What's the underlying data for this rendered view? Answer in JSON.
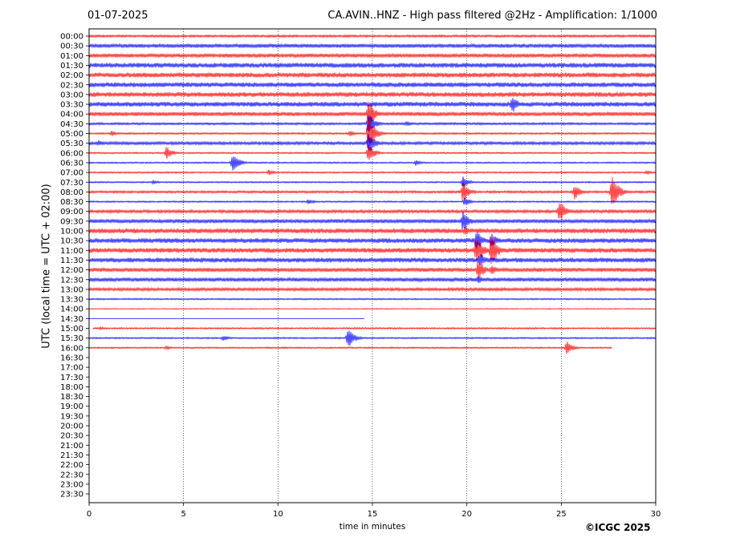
{
  "header": {
    "date": "01-07-2025",
    "title": "CA.AVIN..HNZ - High pass filtered @2Hz - Amplification: 1/1000"
  },
  "footer": {
    "copyright": "©ICGC 2025"
  },
  "chart_data": {
    "type": "line",
    "xlabel": "time in minutes",
    "ylabel": "UTC (local time = UTC + 02:00)",
    "xlim": [
      0,
      30
    ],
    "xticks": [
      "0",
      "5",
      "10",
      "15",
      "20",
      "25",
      "30"
    ],
    "grid": "vertical dotted at 5-minute intervals",
    "trace_colors": [
      "#ff0000",
      "#0000ff"
    ],
    "row_labels": [
      "00:00",
      "00:30",
      "01:00",
      "01:30",
      "02:00",
      "02:30",
      "03:00",
      "03:30",
      "04:00",
      "04:30",
      "05:00",
      "05:30",
      "06:00",
      "06:30",
      "07:00",
      "07:30",
      "08:00",
      "08:30",
      "09:00",
      "09:30",
      "10:00",
      "10:30",
      "11:00",
      "11:30",
      "12:00",
      "12:30",
      "13:00",
      "13:30",
      "14:00",
      "14:30",
      "15:00",
      "15:30",
      "16:00",
      "16:30",
      "17:00",
      "17:30",
      "18:00",
      "18:30",
      "19:00",
      "19:30",
      "20:00",
      "20:30",
      "21:00",
      "21:30",
      "22:00",
      "22:30",
      "23:00",
      "23:30"
    ],
    "traces": [
      {
        "row": "00:00",
        "color": "red",
        "amp": 1.5,
        "end": 30,
        "events": []
      },
      {
        "row": "00:30",
        "color": "blue",
        "amp": 2.5,
        "end": 30,
        "events": []
      },
      {
        "row": "01:00",
        "color": "red",
        "amp": 2.5,
        "end": 30,
        "events": []
      },
      {
        "row": "01:30",
        "color": "blue",
        "amp": 3,
        "end": 30,
        "events": []
      },
      {
        "row": "02:00",
        "color": "red",
        "amp": 3,
        "end": 30,
        "events": []
      },
      {
        "row": "02:30",
        "color": "blue",
        "amp": 3,
        "end": 30,
        "events": []
      },
      {
        "row": "03:00",
        "color": "red",
        "amp": 3,
        "end": 30,
        "events": []
      },
      {
        "row": "03:30",
        "color": "blue",
        "amp": 3,
        "end": 30,
        "events": [
          {
            "t": 12.3,
            "a": 4
          },
          {
            "t": 22.4,
            "a": 12
          }
        ]
      },
      {
        "row": "04:00",
        "color": "red",
        "amp": 2.5,
        "end": 30,
        "events": [
          {
            "t": 14.8,
            "a": 20
          }
        ]
      },
      {
        "row": "04:30",
        "color": "blue",
        "amp": 1.5,
        "end": 30,
        "events": [
          {
            "t": 14.8,
            "a": 16
          },
          {
            "t": 16.8,
            "a": 4
          }
        ]
      },
      {
        "row": "05:00",
        "color": "red",
        "amp": 1.2,
        "end": 30,
        "events": [
          {
            "t": 1.2,
            "a": 4
          },
          {
            "t": 13.8,
            "a": 4
          },
          {
            "t": 14.8,
            "a": 24
          }
        ]
      },
      {
        "row": "05:30",
        "color": "blue",
        "amp": 2,
        "end": 30,
        "events": [
          {
            "t": 0.5,
            "a": 4
          },
          {
            "t": 14.8,
            "a": 14
          },
          {
            "t": 28.5,
            "a": 3
          }
        ]
      },
      {
        "row": "06:00",
        "color": "red",
        "amp": 1,
        "end": 30,
        "events": [
          {
            "t": 4.1,
            "a": 9
          },
          {
            "t": 14.8,
            "a": 12
          }
        ]
      },
      {
        "row": "06:30",
        "color": "blue",
        "amp": 1,
        "end": 30,
        "events": [
          {
            "t": 7.6,
            "a": 14
          },
          {
            "t": 17.3,
            "a": 4
          }
        ]
      },
      {
        "row": "07:00",
        "color": "red",
        "amp": 1,
        "end": 30,
        "events": [
          {
            "t": 9.5,
            "a": 4
          },
          {
            "t": 29.5,
            "a": 3
          }
        ]
      },
      {
        "row": "07:30",
        "color": "blue",
        "amp": 1,
        "end": 30,
        "events": [
          {
            "t": 3.4,
            "a": 3
          },
          {
            "t": 19.8,
            "a": 8
          }
        ]
      },
      {
        "row": "08:00",
        "color": "red",
        "amp": 1.5,
        "end": 30,
        "events": [
          {
            "t": 19.8,
            "a": 14
          },
          {
            "t": 25.7,
            "a": 10
          },
          {
            "t": 27.7,
            "a": 24
          }
        ]
      },
      {
        "row": "08:30",
        "color": "blue",
        "amp": 1,
        "end": 30,
        "events": [
          {
            "t": 11.6,
            "a": 4
          },
          {
            "t": 19.9,
            "a": 6
          }
        ]
      },
      {
        "row": "09:00",
        "color": "red",
        "amp": 2,
        "end": 30,
        "events": [
          {
            "t": 24.9,
            "a": 16
          }
        ]
      },
      {
        "row": "09:30",
        "color": "blue",
        "amp": 2.5,
        "end": 30,
        "events": [
          {
            "t": 19.8,
            "a": 14
          }
        ]
      },
      {
        "row": "10:00",
        "color": "red",
        "amp": 3,
        "end": 30,
        "events": [
          {
            "t": 19.9,
            "a": 6
          }
        ]
      },
      {
        "row": "10:30",
        "color": "blue",
        "amp": 3,
        "end": 30,
        "events": [
          {
            "t": 20.5,
            "a": 14
          },
          {
            "t": 21.3,
            "a": 10
          }
        ]
      },
      {
        "row": "11:00",
        "color": "red",
        "amp": 3,
        "end": 30,
        "events": [
          {
            "t": 20.5,
            "a": 22
          },
          {
            "t": 21.3,
            "a": 22
          }
        ]
      },
      {
        "row": "11:30",
        "color": "blue",
        "amp": 3,
        "end": 30,
        "events": [
          {
            "t": 20.7,
            "a": 10
          }
        ]
      },
      {
        "row": "12:00",
        "color": "red",
        "amp": 2.5,
        "end": 30,
        "events": [
          {
            "t": 20.6,
            "a": 14
          },
          {
            "t": 21.3,
            "a": 8
          }
        ]
      },
      {
        "row": "12:30",
        "color": "blue",
        "amp": 2.5,
        "end": 30,
        "events": [
          {
            "t": 20.6,
            "a": 6
          }
        ]
      },
      {
        "row": "13:00",
        "color": "red",
        "amp": 2,
        "end": 30,
        "events": []
      },
      {
        "row": "13:30",
        "color": "blue",
        "amp": 1,
        "end": 30,
        "events": []
      },
      {
        "row": "14:00",
        "color": "red",
        "amp": 0.6,
        "end": 30,
        "events": []
      },
      {
        "row": "14:30",
        "color": "blue",
        "amp": 0.3,
        "end": 14.6,
        "events": []
      },
      {
        "row": "15:00",
        "color": "red",
        "amp": 1,
        "start": 0.2,
        "end": 30,
        "events": [
          {
            "t": 0.6,
            "a": 2
          }
        ]
      },
      {
        "row": "15:30",
        "color": "blue",
        "amp": 1,
        "end": 30,
        "events": [
          {
            "t": 7.1,
            "a": 4
          },
          {
            "t": 13.7,
            "a": 14
          }
        ]
      },
      {
        "row": "16:00",
        "color": "red",
        "amp": 1,
        "end": 27.7,
        "events": [
          {
            "t": 4.1,
            "a": 3
          },
          {
            "t": 25.3,
            "a": 9
          }
        ]
      }
    ]
  }
}
